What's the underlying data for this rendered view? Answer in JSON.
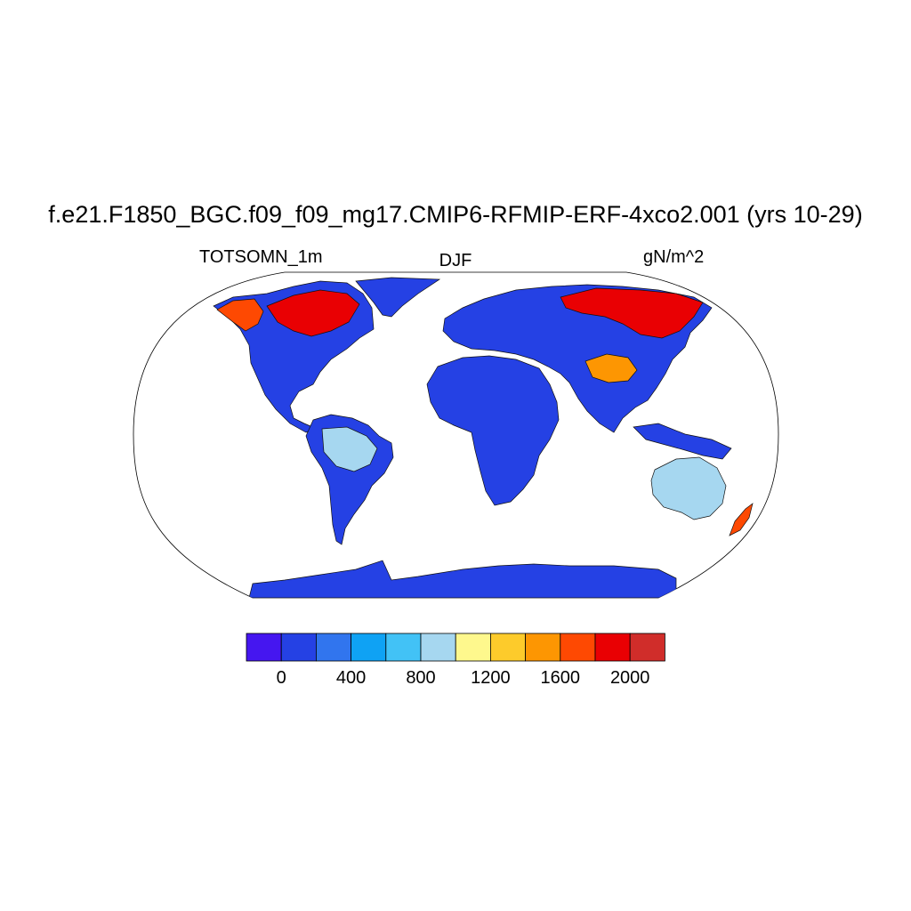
{
  "title": "f.e21.F1850_BGC.f09_f09_mg17.CMIP6-RFMIP-ERF-4xco2.001 (yrs 10-29)",
  "left_label": "TOTSOMN_1m",
  "center_label": "DJF",
  "right_label": "gN/m^2",
  "colorbar": {
    "colors": [
      "#4516f0",
      "#2541e4",
      "#3175ee",
      "#0fa2f4",
      "#42c2f6",
      "#a6d7f0",
      "#fef88d",
      "#fdcb2b",
      "#fd9602",
      "#fe4902",
      "#e90003",
      "#d02d2a"
    ],
    "tick_labels": [
      "0",
      "400",
      "800",
      "1200",
      "1600",
      "2000"
    ]
  },
  "regions": [
    {
      "name": "antarctica",
      "color": "#2541e4"
    },
    {
      "name": "greenland",
      "color": "#2541e4"
    },
    {
      "name": "north-america",
      "color": "#2541e4"
    },
    {
      "name": "canada-high",
      "color": "#e90003"
    },
    {
      "name": "alaska-high",
      "color": "#fe4902"
    },
    {
      "name": "south-america",
      "color": "#2541e4"
    },
    {
      "name": "amazon",
      "color": "#a6d7f0"
    },
    {
      "name": "africa",
      "color": "#2541e4"
    },
    {
      "name": "eurasia",
      "color": "#2541e4"
    },
    {
      "name": "siberia-high",
      "color": "#e90003"
    },
    {
      "name": "tibet-high",
      "color": "#fd9602"
    },
    {
      "name": "australia",
      "color": "#2541e4"
    },
    {
      "name": "maritime-se-asia",
      "color": "#a6d7f0"
    },
    {
      "name": "new-zealand",
      "color": "#fe4902"
    }
  ]
}
